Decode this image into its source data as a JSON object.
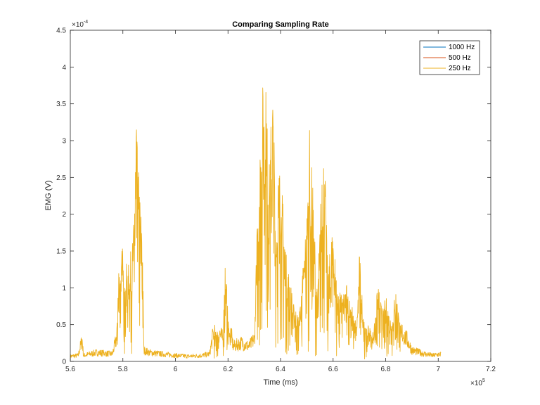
{
  "chart_data": {
    "type": "line",
    "title": "Comparing Sampling Rate",
    "xlabel": "Time (ms)",
    "ylabel": "EMG (V)",
    "x_exponent_label": "×10",
    "x_exponent_power": "5",
    "y_exponent_label": "×10",
    "y_exponent_power": "-4",
    "xlim": [
      5.6,
      7.2
    ],
    "ylim": [
      0,
      4.5
    ],
    "x_ticks": [
      "5.6",
      "5.8",
      "6",
      "6.2",
      "6.4",
      "6.6",
      "6.8",
      "7",
      "7.2"
    ],
    "y_ticks": [
      "0",
      "0.5",
      "1",
      "1.5",
      "2",
      "2.5",
      "3",
      "3.5",
      "4",
      "4.5"
    ],
    "grid": false,
    "legend_position": "top-right",
    "series": [
      {
        "name": "1000 Hz",
        "color": "#0072BD",
        "visible_trace": false
      },
      {
        "name": "500 Hz",
        "color": "#D95319",
        "visible_trace": false
      },
      {
        "name": "250 Hz",
        "color": "#EDB120",
        "visible_trace": true,
        "x": [
          5.6,
          5.63,
          5.645,
          5.65,
          5.7,
          5.76,
          5.775,
          5.785,
          5.8,
          5.815,
          5.83,
          5.84,
          5.85,
          5.86,
          5.87,
          5.875,
          5.88,
          5.9,
          5.95,
          6.0,
          6.05,
          6.1,
          6.13,
          6.15,
          6.18,
          6.19,
          6.2,
          6.22,
          6.25,
          6.28,
          6.3,
          6.315,
          6.33,
          6.335,
          6.345,
          6.355,
          6.37,
          6.38,
          6.4,
          6.42,
          6.45,
          6.47,
          6.5,
          6.51,
          6.52,
          6.54,
          6.56,
          6.57,
          6.58,
          6.6,
          6.62,
          6.65,
          6.67,
          6.69,
          6.7,
          6.72,
          6.75,
          6.77,
          6.79,
          6.8,
          6.82,
          6.84,
          6.86,
          6.88,
          6.9,
          6.95,
          6.98,
          7.01
        ],
        "y": [
          0.07,
          0.08,
          0.3,
          0.08,
          0.12,
          0.1,
          0.3,
          1.4,
          1.6,
          1.3,
          1.5,
          1.8,
          3.3,
          2.6,
          2.0,
          1.6,
          0.15,
          0.12,
          0.1,
          0.08,
          0.07,
          0.08,
          0.1,
          0.5,
          0.3,
          1.5,
          0.6,
          0.2,
          0.25,
          0.2,
          0.3,
          2.5,
          3.5,
          4.2,
          3.8,
          2.5,
          4.0,
          2.3,
          2.8,
          1.5,
          0.8,
          0.6,
          2.0,
          3.2,
          2.6,
          0.9,
          3.0,
          2.5,
          1.2,
          2.0,
          0.9,
          1.1,
          0.8,
          0.5,
          1.5,
          0.5,
          0.25,
          1.05,
          0.7,
          0.9,
          0.6,
          1.0,
          0.4,
          0.3,
          0.15,
          0.1,
          0.08,
          0.1
        ]
      }
    ]
  }
}
